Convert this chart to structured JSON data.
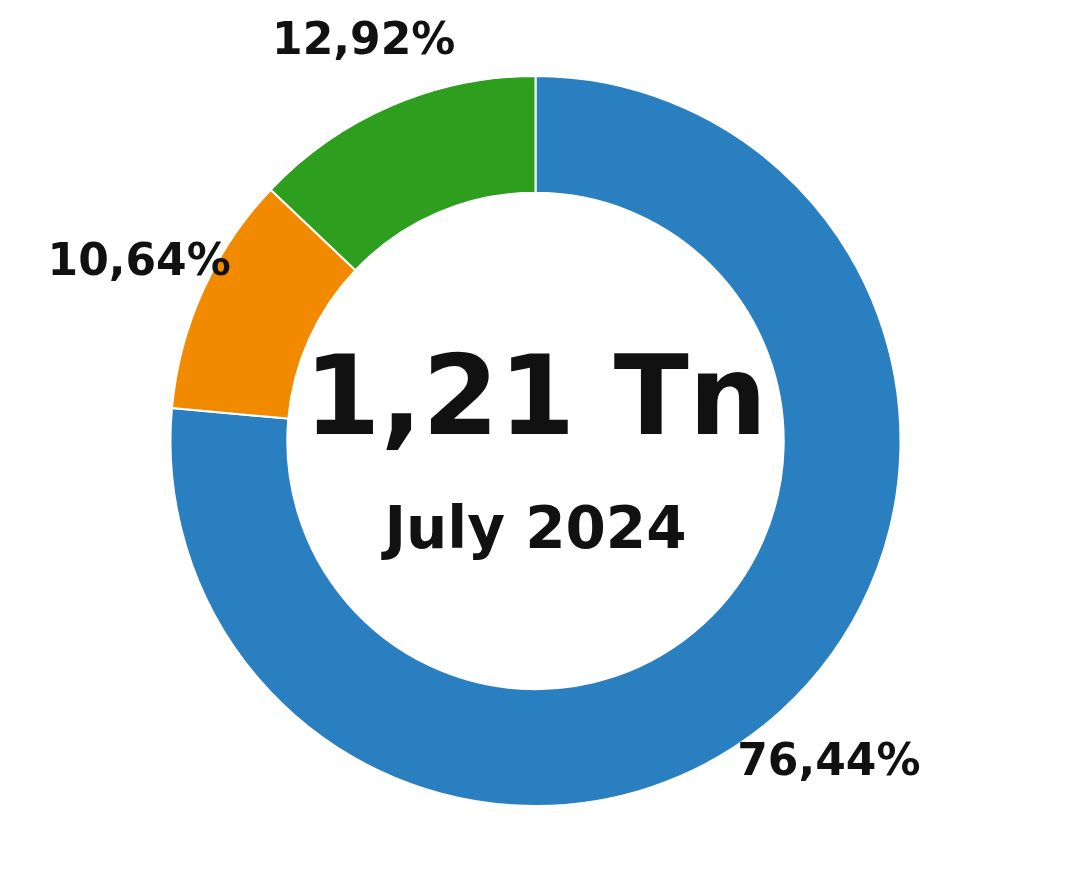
{
  "chart_data": {
    "type": "donut",
    "categories": [
      null,
      null,
      null
    ],
    "values": [
      76.44,
      10.64,
      12.92
    ],
    "colors": [
      "#2a7fc0",
      "#f28a00",
      "#2e9e1e"
    ],
    "value_labels": [
      "76,44%",
      "10,64%",
      "12,92%"
    ],
    "annotations": [
      "1,21 Tn",
      "July 2024"
    ],
    "legend": false
  }
}
